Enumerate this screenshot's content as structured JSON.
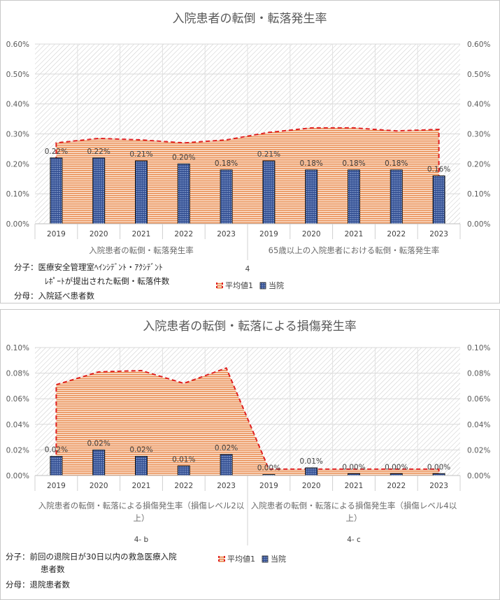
{
  "chart_data": [
    {
      "type": "bar",
      "title": "入院患者の転倒・転落発生率",
      "categories": [
        "2019",
        "2020",
        "2021",
        "2022",
        "2023",
        "2019",
        "2020",
        "2021",
        "2022",
        "2023"
      ],
      "groups": [
        {
          "label": "入院患者の転倒・転落発生率",
          "count": 5
        },
        {
          "label": "65歳以上の入院患者における転倒・転落発生率",
          "count": 5
        }
      ],
      "group_code": "4",
      "series": [
        {
          "name": "当院",
          "type": "bar",
          "values": [
            0.22,
            0.22,
            0.21,
            0.2,
            0.18,
            0.21,
            0.18,
            0.18,
            0.18,
            0.16
          ],
          "labels": [
            "0.22%",
            "0.22%",
            "0.21%",
            "0.20%",
            "0.18%",
            "0.21%",
            "0.18%",
            "0.18%",
            "0.18%",
            "0.16%"
          ],
          "color": "#2f4b8f"
        },
        {
          "name": "平均値1",
          "type": "area",
          "values": [
            0.27,
            0.285,
            0.28,
            0.27,
            0.28,
            0.305,
            0.32,
            0.32,
            0.31,
            0.315
          ],
          "color": "#e02020"
        }
      ],
      "ylim": [
        0,
        0.6
      ],
      "yticks": [
        "0.00%",
        "0.10%",
        "0.20%",
        "0.30%",
        "0.40%",
        "0.50%",
        "0.60%"
      ],
      "legend_position": "bottom",
      "notes": {
        "numerator_1": "分子：医療安全管理室ﾍｲﾝｼﾃﾞﾝﾄ・ｱｸｼﾃﾞﾝﾄ",
        "numerator_2": "ﾚﾎﾟｰﾄが提出された転倒・転落件数",
        "denominator": "分母：入院延べ患者数"
      }
    },
    {
      "type": "bar",
      "title": "入院患者の転倒・転落による損傷発生率",
      "categories": [
        "2019",
        "2020",
        "2021",
        "2022",
        "2023",
        "2019",
        "2020",
        "2021",
        "2022",
        "2023"
      ],
      "groups": [
        {
          "label": "入院患者の転倒・転落による損傷発生率（損傷レベル2以上）",
          "label_line1": "入院患者の転倒・転落による損傷発生率（損傷レベル2以",
          "label_line2": "上）",
          "code": "4- b",
          "count": 5
        },
        {
          "label": "入院患者の転倒・転落による損傷発生率（損傷レベル4以上）",
          "label_line1": "入院患者の転倒・転落による損傷発生率（損傷レベル4以",
          "label_line2": "上）",
          "code": "4- c",
          "count": 5
        }
      ],
      "series": [
        {
          "name": "当院",
          "type": "bar",
          "values": [
            0.015,
            0.02,
            0.015,
            0.0075,
            0.0165,
            0.0005,
            0.006,
            0.0015,
            0.0015,
            0.0015
          ],
          "labels": [
            "0.02%",
            "0.02%",
            "0.02%",
            "0.01%",
            "0.02%",
            "0.00%",
            "0.01%",
            "0.00%",
            "0.00%",
            "0.00%"
          ],
          "color": "#2f4b8f"
        },
        {
          "name": "平均値1",
          "type": "area",
          "values": [
            0.071,
            0.081,
            0.082,
            0.072,
            0.084,
            0.005,
            0.005,
            0.005,
            0.005,
            0.005
          ],
          "color": "#e02020"
        }
      ],
      "ylim": [
        0,
        0.1
      ],
      "yticks": [
        "0.00%",
        "0.02%",
        "0.04%",
        "0.06%",
        "0.08%",
        "0.10%"
      ],
      "legend_position": "bottom",
      "notes": {
        "numerator_1": "分子：前回の退院日が30日以内の救急医療入院",
        "numerator_2": "患者数",
        "denominator": "分母：退院患者数"
      }
    }
  ]
}
